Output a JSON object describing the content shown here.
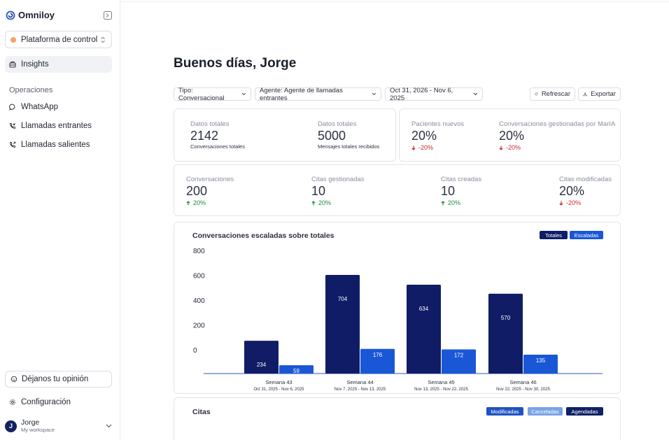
{
  "app": {
    "brand": "Omniloy",
    "org_selector": "Plataforma de control"
  },
  "sidebar": {
    "insights": "Insights",
    "section_label": "Operaciones",
    "items": [
      {
        "label": "WhatsApp",
        "icon": "chat-icon"
      },
      {
        "label": "Llamadas entrantes",
        "icon": "phone-incoming-icon"
      },
      {
        "label": "Llamadas salientes",
        "icon": "phone-outgoing-icon"
      }
    ],
    "feedback": "Déjanos tu opinión",
    "settings": "Configuración",
    "user": {
      "initial": "J",
      "name": "Jorge",
      "workspace": "My workspace"
    }
  },
  "main": {
    "greeting": "Buenos días, Jorge",
    "filters": {
      "type": "Tipo: Conversacional",
      "agent": "Agente: Agente de llamadas entrantes",
      "date_range": "Oct 31, 2026 - Nov 6, 2025"
    },
    "actions": {
      "refresh": "Refrescar",
      "export": "Exportar"
    },
    "stats_row1_left": [
      {
        "label": "Datos totales",
        "value": "2142",
        "sub": "Conversaciones totales"
      },
      {
        "label": "Datos totales",
        "value": "5000",
        "sub": "Mensajes totales recibidos"
      }
    ],
    "stats_row1_right": [
      {
        "label": "Pacientes nuevos",
        "value": "20%",
        "delta": "-20%",
        "direction": "down"
      },
      {
        "label": "Conversaciones gestionadas por MarIA",
        "value": "20%",
        "delta": "-20%",
        "direction": "down"
      }
    ],
    "stats_row2": [
      {
        "label": "Conversaciones",
        "value": "200",
        "delta": "20%",
        "direction": "up"
      },
      {
        "label": "Citas gestionadas",
        "value": "10",
        "delta": "20%",
        "direction": "up"
      },
      {
        "label": "Citas creadas",
        "value": "10",
        "delta": "20%",
        "direction": "up"
      },
      {
        "label": "Citas modificadas",
        "value": "20%",
        "delta": "-20%",
        "direction": "down"
      }
    ],
    "citas": {
      "title": "Citas",
      "legend": [
        {
          "label": "Modificadas",
          "color": "#1f52c4"
        },
        {
          "label": "Canceladas",
          "color": "#7aa3e6"
        },
        {
          "label": "Agendadas",
          "color": "#0f2266"
        }
      ]
    }
  },
  "colors": {
    "totales": "#101d66",
    "escaladas": "#1957d6",
    "up": "#1d8a3c",
    "down": "#c62a2a"
  },
  "chart_data": {
    "type": "bar",
    "title": "Conversaciones escaladas sobre totales",
    "categories": [
      "Semana 43",
      "Semana 44",
      "Semana 45",
      "Semana 46"
    ],
    "category_subtitles": [
      "Oct 31, 2025 - Nov 6, 2025",
      "Nov 7, 2025 - Nov 13, 2025",
      "Nov 13, 2025 - Nov 22, 2025",
      "Nov 22, 2025 - Nov 30, 2025"
    ],
    "series": [
      {
        "name": "Totales",
        "values": [
          234,
          704,
          634,
          570
        ]
      },
      {
        "name": "Escaladas",
        "values": [
          59,
          176,
          172,
          135
        ]
      }
    ],
    "y_ticks": [
      800,
      600,
      400,
      200,
      0
    ],
    "legend_position": "top-right"
  }
}
